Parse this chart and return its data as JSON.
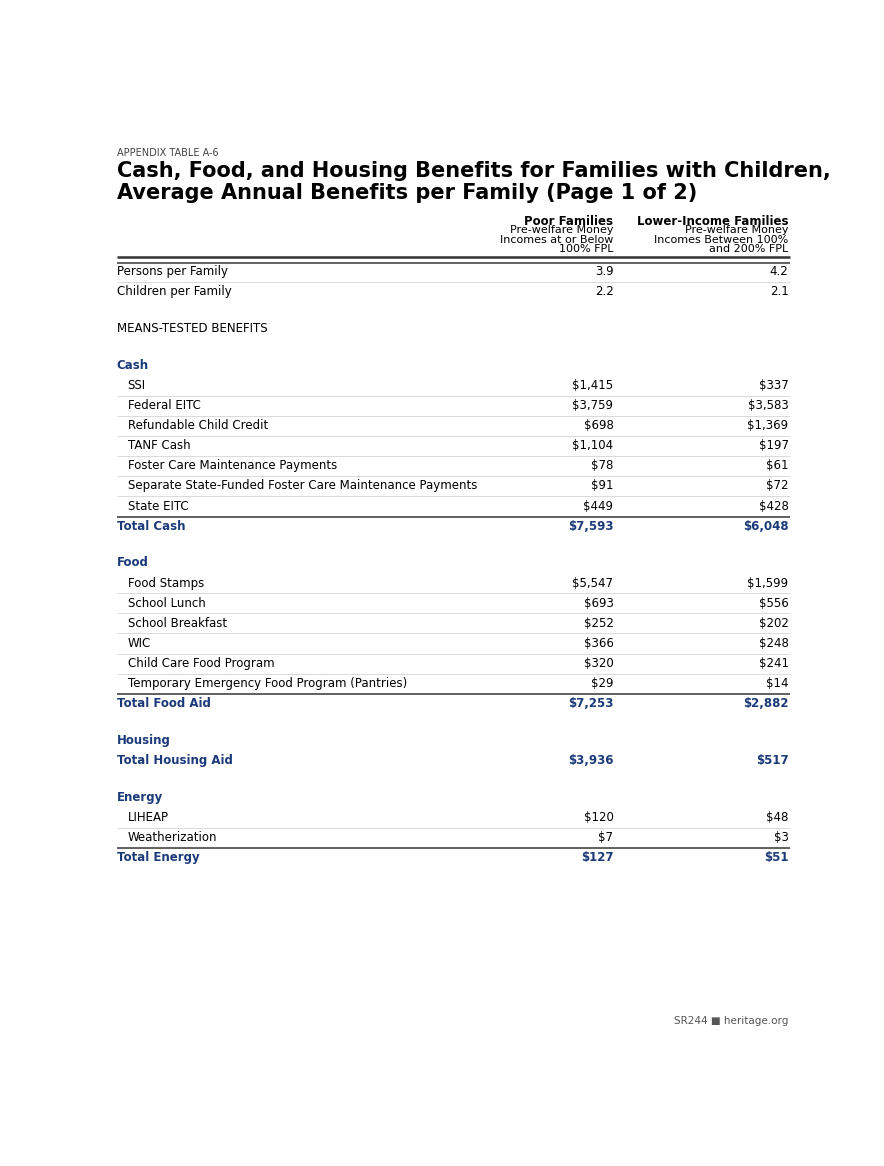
{
  "appendix_label": "APPENDIX TABLE A-6",
  "title_line1": "Cash, Food, and Housing Benefits for Families with Children,",
  "title_line2": "Average Annual Benefits per Family (Page 1 of 2)",
  "col1_header_bold": "Poor Families",
  "col2_header_bold": "Lower-Income Families",
  "blue_color": "#1a3a7a",
  "rows": [
    {
      "label": "Persons per Family",
      "col1": "3.9",
      "col2": "4.2",
      "type": "normal",
      "indent": false,
      "divider_above": true,
      "divider_below": true
    },
    {
      "label": "Children per Family",
      "col1": "2.2",
      "col2": "2.1",
      "type": "normal",
      "indent": false,
      "divider_above": false,
      "divider_below": false
    },
    {
      "label": "",
      "col1": "",
      "col2": "",
      "type": "spacer_lg",
      "indent": false,
      "divider_above": false,
      "divider_below": false
    },
    {
      "label": "MEANS-TESTED BENEFITS",
      "col1": "",
      "col2": "",
      "type": "section_label",
      "indent": false,
      "divider_above": false,
      "divider_below": false
    },
    {
      "label": "",
      "col1": "",
      "col2": "",
      "type": "spacer_lg",
      "indent": false,
      "divider_above": false,
      "divider_below": false
    },
    {
      "label": "Cash",
      "col1": "",
      "col2": "",
      "type": "category_header",
      "indent": false,
      "divider_above": false,
      "divider_below": false
    },
    {
      "label": "SSI",
      "col1": "$1,415",
      "col2": "$337",
      "type": "normal",
      "indent": true,
      "divider_above": false,
      "divider_below": true
    },
    {
      "label": "Federal EITC",
      "col1": "$3,759",
      "col2": "$3,583",
      "type": "normal",
      "indent": true,
      "divider_above": false,
      "divider_below": true
    },
    {
      "label": "Refundable Child Credit",
      "col1": "$698",
      "col2": "$1,369",
      "type": "normal",
      "indent": true,
      "divider_above": false,
      "divider_below": true
    },
    {
      "label": "TANF Cash",
      "col1": "$1,104",
      "col2": "$197",
      "type": "normal",
      "indent": true,
      "divider_above": false,
      "divider_below": true
    },
    {
      "label": "Foster Care Maintenance Payments",
      "col1": "$78",
      "col2": "$61",
      "type": "normal",
      "indent": true,
      "divider_above": false,
      "divider_below": true
    },
    {
      "label": "Separate State-Funded Foster Care Maintenance Payments",
      "col1": "$91",
      "col2": "$72",
      "type": "normal",
      "indent": true,
      "divider_above": false,
      "divider_below": true
    },
    {
      "label": "State EITC",
      "col1": "$449",
      "col2": "$428",
      "type": "normal",
      "indent": true,
      "divider_above": false,
      "divider_below": true
    },
    {
      "label": "Total Cash",
      "col1": "$7,593",
      "col2": "$6,048",
      "type": "total",
      "indent": false,
      "divider_above": true,
      "divider_below": false
    },
    {
      "label": "",
      "col1": "",
      "col2": "",
      "type": "spacer_lg",
      "indent": false,
      "divider_above": false,
      "divider_below": false
    },
    {
      "label": "Food",
      "col1": "",
      "col2": "",
      "type": "category_header",
      "indent": false,
      "divider_above": false,
      "divider_below": false
    },
    {
      "label": "Food Stamps",
      "col1": "$5,547",
      "col2": "$1,599",
      "type": "normal",
      "indent": true,
      "divider_above": false,
      "divider_below": true
    },
    {
      "label": "School Lunch",
      "col1": "$693",
      "col2": "$556",
      "type": "normal",
      "indent": true,
      "divider_above": false,
      "divider_below": true
    },
    {
      "label": "School Breakfast",
      "col1": "$252",
      "col2": "$202",
      "type": "normal",
      "indent": true,
      "divider_above": false,
      "divider_below": true
    },
    {
      "label": "WIC",
      "col1": "$366",
      "col2": "$248",
      "type": "normal",
      "indent": true,
      "divider_above": false,
      "divider_below": true
    },
    {
      "label": "Child Care Food Program",
      "col1": "$320",
      "col2": "$241",
      "type": "normal",
      "indent": true,
      "divider_above": false,
      "divider_below": true
    },
    {
      "label": "Temporary Emergency Food Program (Pantries)",
      "col1": "$29",
      "col2": "$14",
      "type": "normal",
      "indent": true,
      "divider_above": false,
      "divider_below": true
    },
    {
      "label": "Total Food Aid",
      "col1": "$7,253",
      "col2": "$2,882",
      "type": "total",
      "indent": false,
      "divider_above": true,
      "divider_below": false
    },
    {
      "label": "",
      "col1": "",
      "col2": "",
      "type": "spacer_lg",
      "indent": false,
      "divider_above": false,
      "divider_below": false
    },
    {
      "label": "Housing",
      "col1": "",
      "col2": "",
      "type": "category_header",
      "indent": false,
      "divider_above": false,
      "divider_below": false
    },
    {
      "label": "Total Housing Aid",
      "col1": "$3,936",
      "col2": "$517",
      "type": "total",
      "indent": false,
      "divider_above": false,
      "divider_below": false
    },
    {
      "label": "",
      "col1": "",
      "col2": "",
      "type": "spacer_lg",
      "indent": false,
      "divider_above": false,
      "divider_below": false
    },
    {
      "label": "Energy",
      "col1": "",
      "col2": "",
      "type": "category_header",
      "indent": false,
      "divider_above": false,
      "divider_below": false
    },
    {
      "label": "LIHEAP",
      "col1": "$120",
      "col2": "$48",
      "type": "normal",
      "indent": true,
      "divider_above": false,
      "divider_below": true
    },
    {
      "label": "Weatherization",
      "col1": "$7",
      "col2": "$3",
      "type": "normal",
      "indent": true,
      "divider_above": false,
      "divider_below": true
    },
    {
      "label": "Total Energy",
      "col1": "$127",
      "col2": "$51",
      "type": "total",
      "indent": false,
      "divider_above": true,
      "divider_below": false
    }
  ],
  "footer": "SR244 ■ heritage.org",
  "bg_color": "#ffffff"
}
